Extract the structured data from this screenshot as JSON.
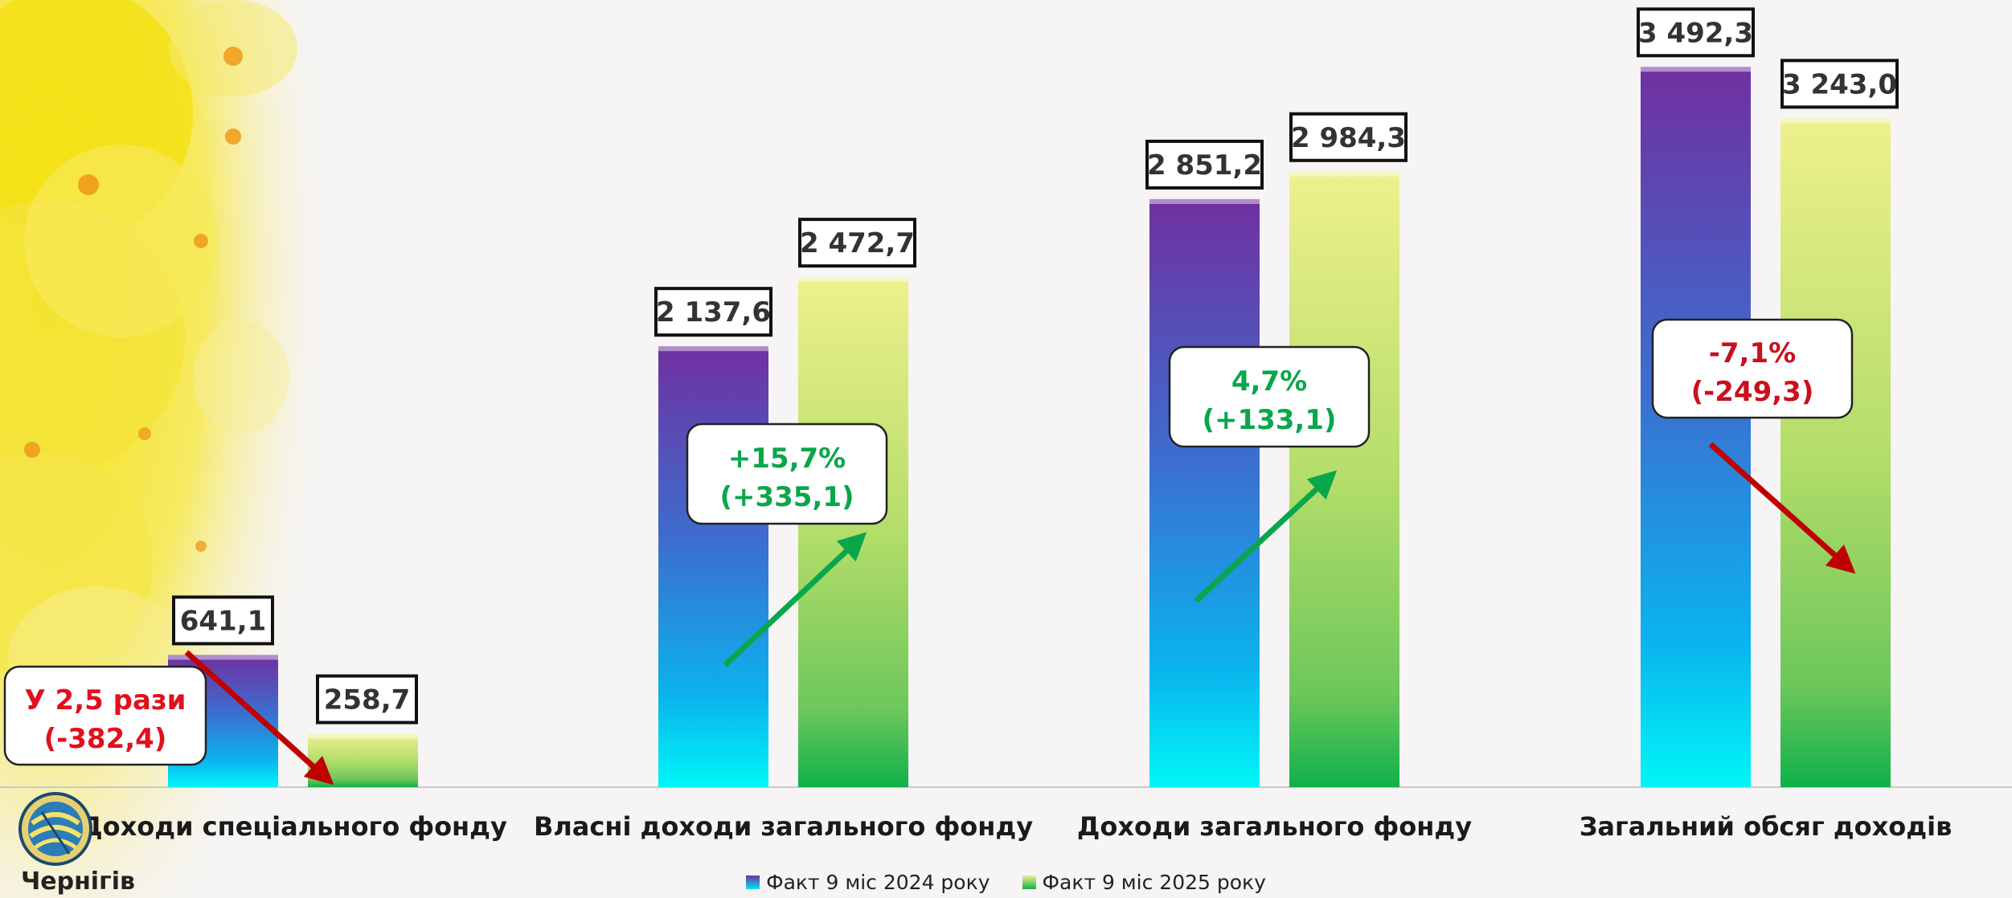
{
  "chart_data": {
    "type": "bar",
    "title": "",
    "xlabel": "",
    "ylabel": "",
    "ylim": [
      0,
      3700
    ],
    "grid": false,
    "legend_position": "bottom",
    "categories": [
      "Доходи спеціального фонду",
      "Власні доходи загального фонду",
      "Доходи загального фонду",
      "Загальний обсяг доходів"
    ],
    "series": [
      {
        "name": "Факт 9 міс 2024 року",
        "values": [
          641.1,
          2137.6,
          2851.2,
          3492.3
        ],
        "labels": [
          "641,1",
          "2 137,6",
          "2 851,2",
          "3 492,3"
        ]
      },
      {
        "name": "Факт 9 міс 2025 року",
        "values": [
          258.7,
          2472.7,
          2984.3,
          3243.0
        ],
        "labels": [
          "258,7",
          "2 472,7",
          "2 984,3",
          "3 243,0"
        ]
      }
    ],
    "annotations": [
      {
        "line1": "У 2,5 рази",
        "line2": "(-382,4)",
        "color": "#e0101e",
        "direction": "down"
      },
      {
        "line1": "+15,7%",
        "line2": "(+335,1)",
        "color": "#0aa64b",
        "direction": "up"
      },
      {
        "line1": "4,7%",
        "line2": "(+133,1)",
        "color": "#0aa64b",
        "direction": "up"
      },
      {
        "line1": "-7,1%",
        "line2": "(-249,3)",
        "color": "#c8101e",
        "direction": "down"
      }
    ]
  },
  "logo": {
    "text": "Чернігів",
    "icon": "chernihiv-city-logo-icon"
  },
  "colors": {
    "series_2024_top": "#7030a0",
    "series_2024_bottom": "#00f0f0",
    "series_2025_top": "#ecee8a",
    "series_2025_bottom": "#0fb04a",
    "positive": "#0aa64b",
    "negative": "#d9101e",
    "arrow_up": "#0aa64b",
    "arrow_down": "#c00000"
  }
}
